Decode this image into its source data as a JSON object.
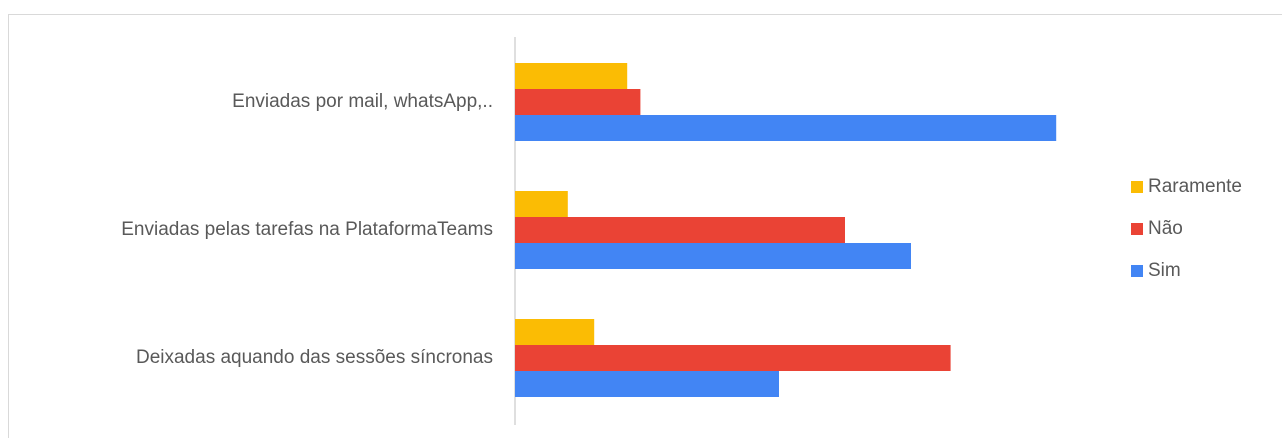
{
  "chart_data": {
    "type": "bar",
    "orientation": "horizontal",
    "categories": [
      "Enviadas por mail, whatsApp,..",
      "Enviadas pelas tarefas na PlataformaTeams",
      "Deixadas aquando das sessões síncronas"
    ],
    "series": [
      {
        "name": "Raramente",
        "color": "#fbbc04",
        "values": [
          17,
          8,
          12
        ]
      },
      {
        "name": "Não",
        "color": "#ea4335",
        "values": [
          19,
          50,
          66
        ]
      },
      {
        "name": "Sim",
        "color": "#4285f4",
        "values": [
          82,
          60,
          40
        ]
      }
    ],
    "legend": "right"
  }
}
